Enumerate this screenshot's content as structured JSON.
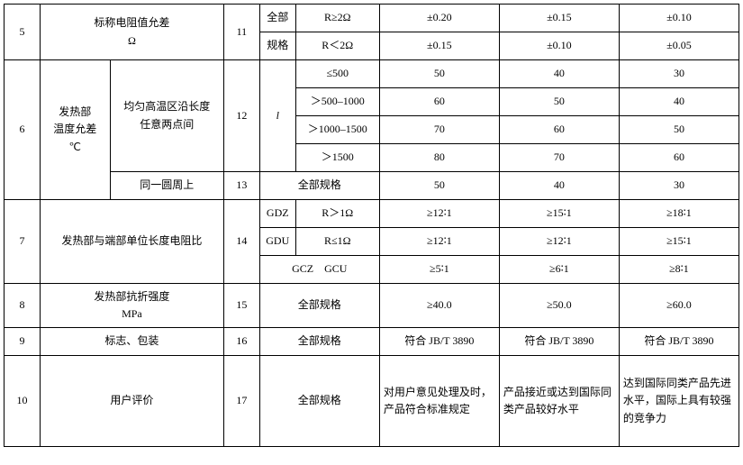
{
  "row5": {
    "idx": "5",
    "desc": "标称电阻值允差\nΩ",
    "sub": "11",
    "sub2a": "全部",
    "sub2b": "规格",
    "cond_a": "R≥2Ω",
    "cond_b": "R＜2Ω",
    "a1": "±0.20",
    "a2": "±0.15",
    "a3": "±0.10",
    "b1": "±0.15",
    "b2": "±0.10",
    "b3": "±0.05"
  },
  "row6": {
    "idx": "6",
    "desc_left": "发热部\n温度允差\n℃",
    "desc_right": "均匀高温区沿长度\n任意两点间",
    "sub": "12",
    "sub2": "l",
    "c1": "≤500",
    "v1a": "50",
    "v1b": "40",
    "v1c": "30",
    "c2": "＞500–1000",
    "v2a": "60",
    "v2b": "50",
    "v2c": "40",
    "c3": "＞1000–1500",
    "v3a": "70",
    "v3b": "60",
    "v3c": "50",
    "c4": "＞1500",
    "v4a": "80",
    "v4b": "70",
    "v4c": "60",
    "same_circle": "同一圆周上",
    "sub_sc": "13",
    "sc_cond": "全部规格",
    "sc1": "50",
    "sc2": "40",
    "sc3": "30"
  },
  "row7": {
    "idx": "7",
    "desc": "发热部与端部单位长度电阻比",
    "sub": "14",
    "gdz": "GDZ",
    "gdz_cond": "R＞1Ω",
    "gdz1": "≥12∶1",
    "gdz2": "≥15∶1",
    "gdz3": "≥18∶1",
    "gdu": "GDU",
    "gdu_cond": "R≤1Ω",
    "gdu1": "≥12∶1",
    "gdu2": "≥12∶1",
    "gdu3": "≥15∶1",
    "gcz": "GCZ　GCU",
    "gcz1": "≥5∶1",
    "gcz2": "≥6∶1",
    "gcz3": "≥8∶1"
  },
  "row8": {
    "idx": "8",
    "desc": "发热部抗折强度\nMPa",
    "sub": "15",
    "cond": "全部规格",
    "v1": "≥40.0",
    "v2": "≥50.0",
    "v3": "≥60.0"
  },
  "row9": {
    "idx": "9",
    "desc": "标志、包装",
    "sub": "16",
    "cond": "全部规格",
    "v1": "符合 JB/T 3890",
    "v2": "符合 JB/T 3890",
    "v3": "符合 JB/T 3890"
  },
  "row10": {
    "idx": "10",
    "desc": "用户评价",
    "sub": "17",
    "cond": "全部规格",
    "v1": "对用户意见处理及时，产品符合标准规定",
    "v2": "产品接近或达到国际同类产品较好水平",
    "v3": "达到国际同类产品先进水平，国际上具有较强的竞争力"
  }
}
